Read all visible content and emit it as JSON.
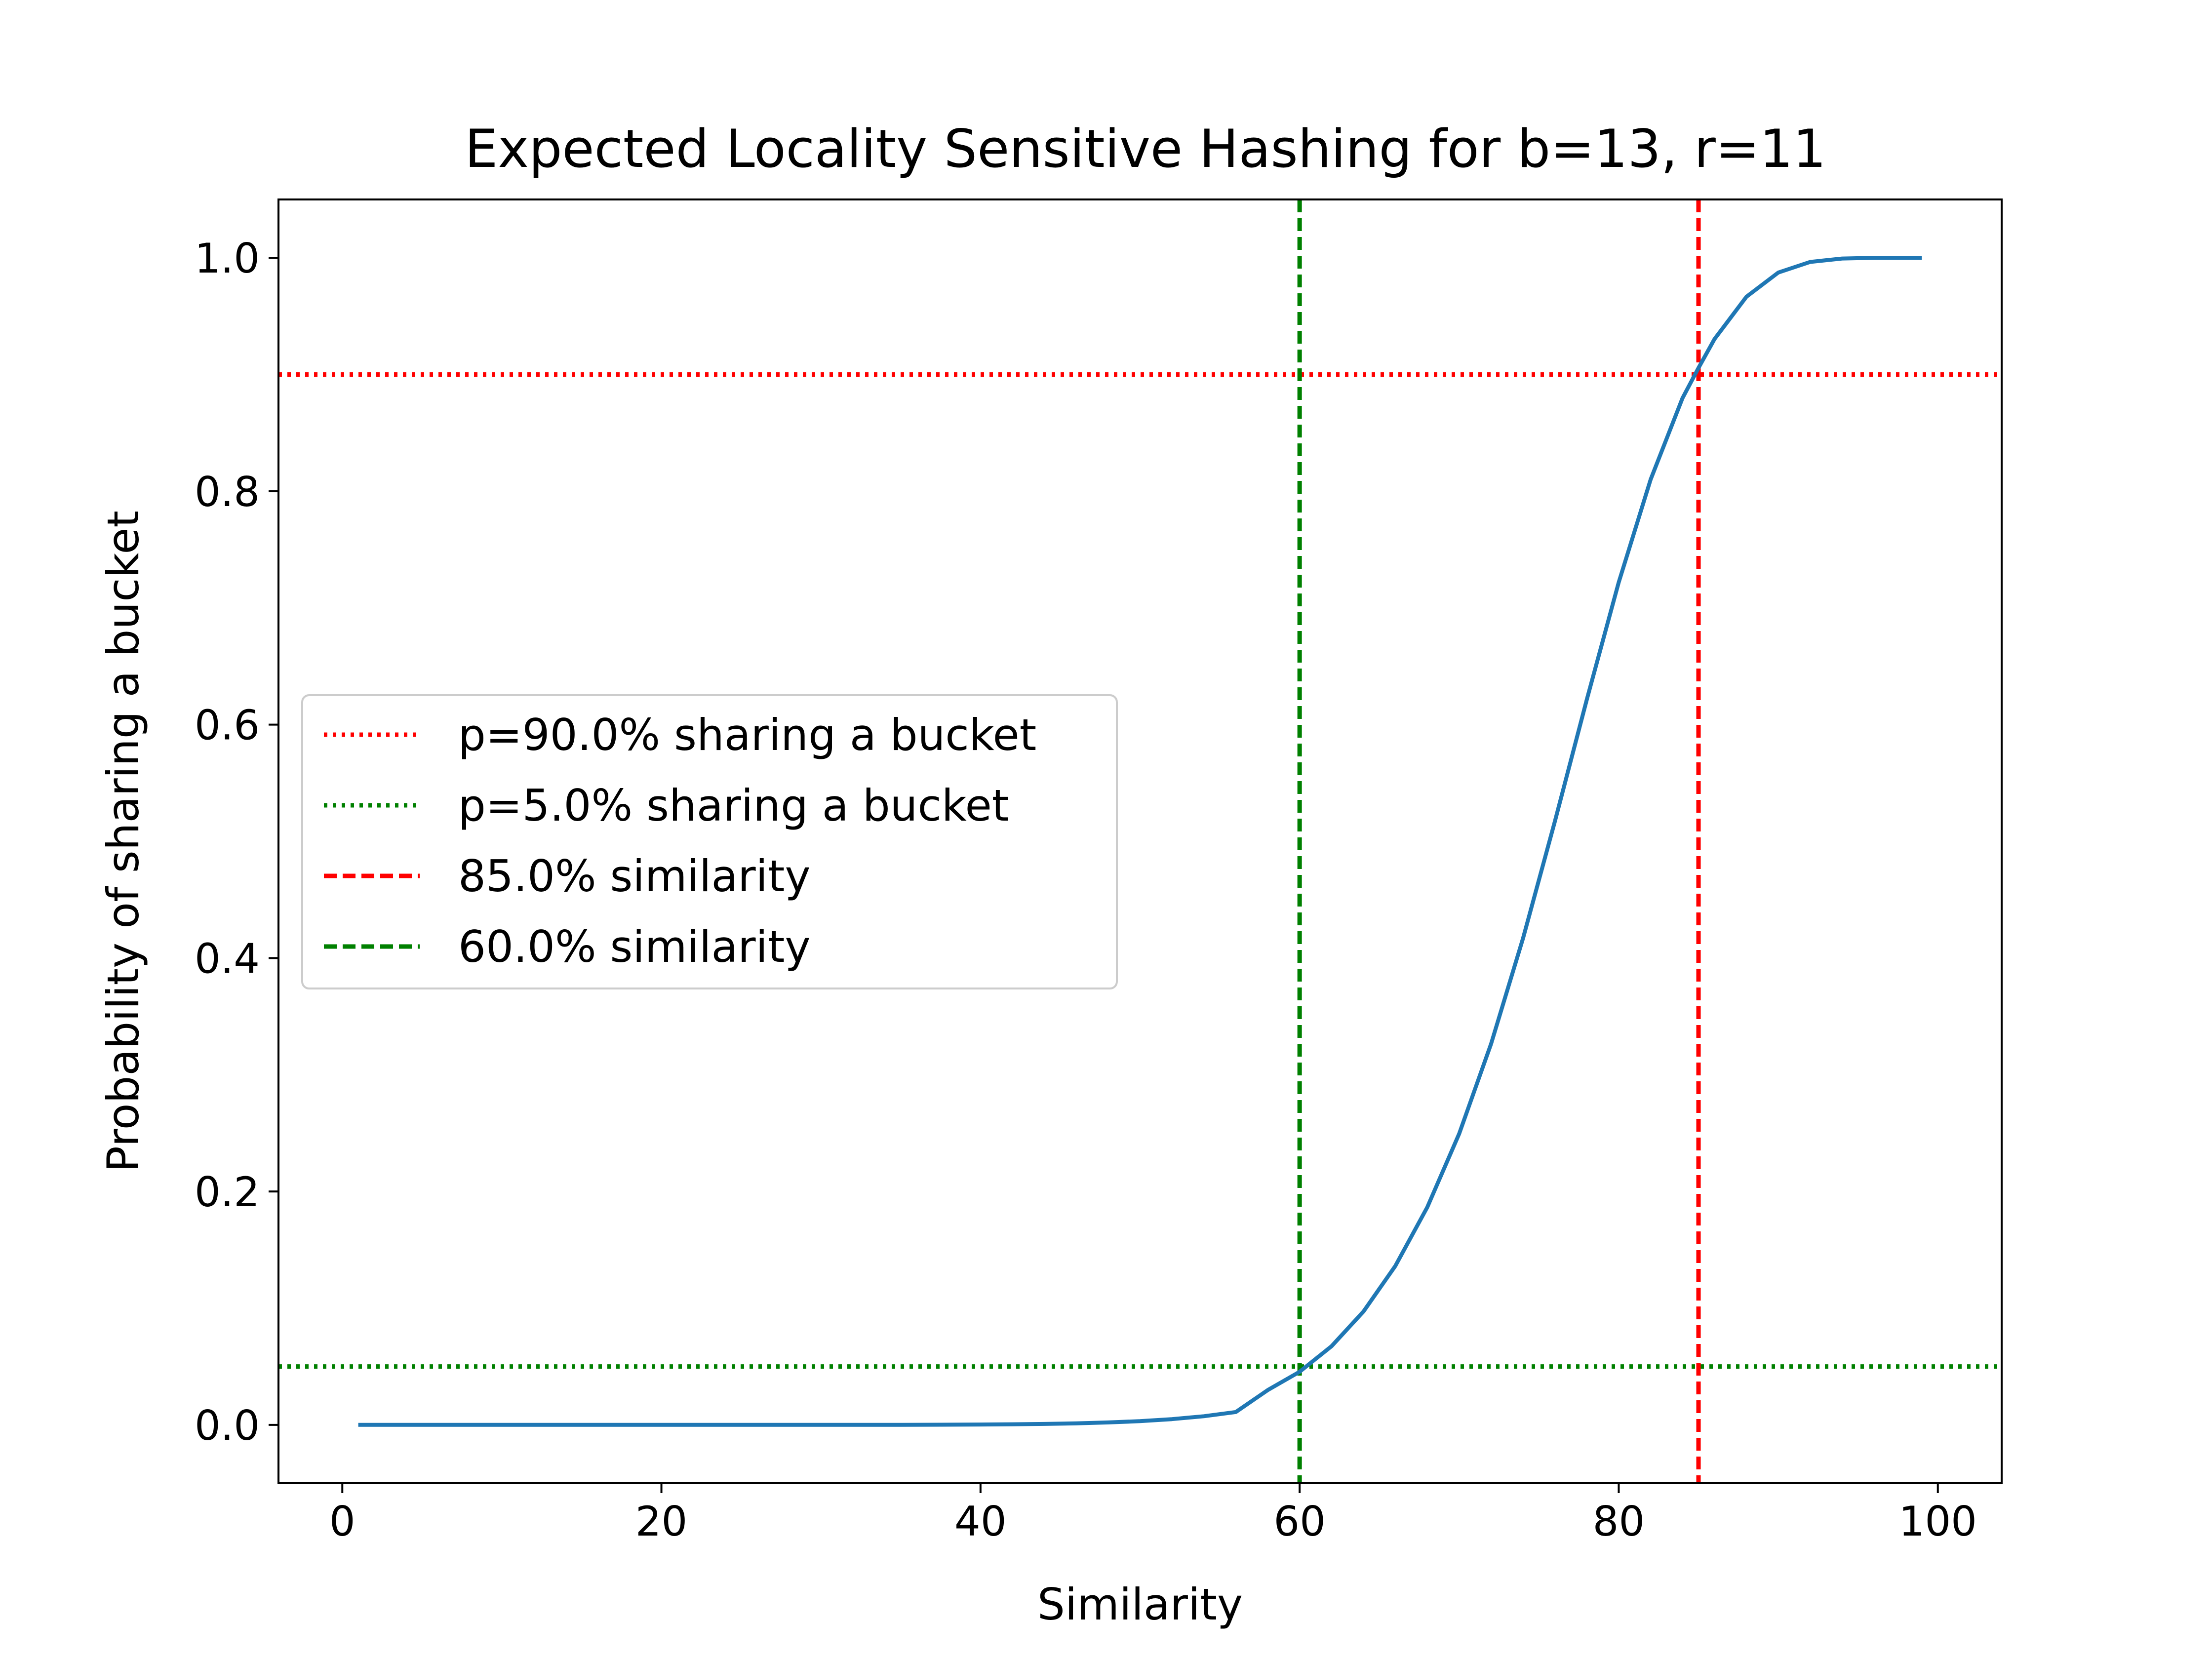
{
  "chart_data": {
    "type": "line",
    "title": "Expected Locality Sensitive Hashing for b=13, r=11",
    "xlabel": "Similarity",
    "ylabel": "Probability of sharing a bucket",
    "xlim": [
      -4,
      104
    ],
    "ylim": [
      -0.05,
      1.05
    ],
    "xticks": [
      0,
      20,
      40,
      60,
      80,
      100
    ],
    "xtick_labels": [
      "0",
      "20",
      "40",
      "60",
      "80",
      "100"
    ],
    "yticks": [
      0.0,
      0.2,
      0.4,
      0.6,
      0.8,
      1.0
    ],
    "ytick_labels": [
      "0.0",
      "0.2",
      "0.4",
      "0.6",
      "0.8",
      "1.0"
    ],
    "grid": false,
    "legend": {
      "placement": "center-left"
    },
    "series": [
      {
        "kind": "curve",
        "color": "#1f77b4",
        "style": "solid",
        "x": [
          1,
          5,
          10,
          15,
          20,
          25,
          30,
          35,
          40,
          42,
          44,
          46,
          48,
          50,
          52,
          54,
          56,
          58,
          60,
          62,
          64,
          66,
          68,
          70,
          72,
          74,
          76,
          78,
          80,
          82,
          84,
          85,
          86,
          88,
          90,
          92,
          94,
          96,
          99
        ],
        "y": [
          0,
          0,
          0,
          0,
          0,
          0,
          0,
          0,
          0.0003,
          0.0005,
          0.0008,
          0.0013,
          0.0021,
          0.0032,
          0.0049,
          0.0074,
          0.011,
          0.0298,
          0.0455,
          0.0674,
          0.0971,
          0.1362,
          0.1865,
          0.2495,
          0.3265,
          0.4169,
          0.5172,
          0.6215,
          0.7219,
          0.8101,
          0.8799,
          0.9057,
          0.9303,
          0.9666,
          0.9874,
          0.9965,
          0.9994,
          1.0,
          1.0
        ]
      }
    ],
    "reference_lines": [
      {
        "name": "p=90.0% sharing a bucket",
        "orientation": "horizontal",
        "value": 0.9,
        "color": "#ff0000",
        "style": "dotted"
      },
      {
        "name": "p=5.0% sharing a bucket",
        "orientation": "horizontal",
        "value": 0.05,
        "color": "#008000",
        "style": "dotted"
      },
      {
        "name": "85.0% similarity",
        "orientation": "vertical",
        "value": 85,
        "color": "#ff0000",
        "style": "dashed"
      },
      {
        "name": "60.0% similarity",
        "orientation": "vertical",
        "value": 60,
        "color": "#008000",
        "style": "dashed"
      }
    ]
  }
}
